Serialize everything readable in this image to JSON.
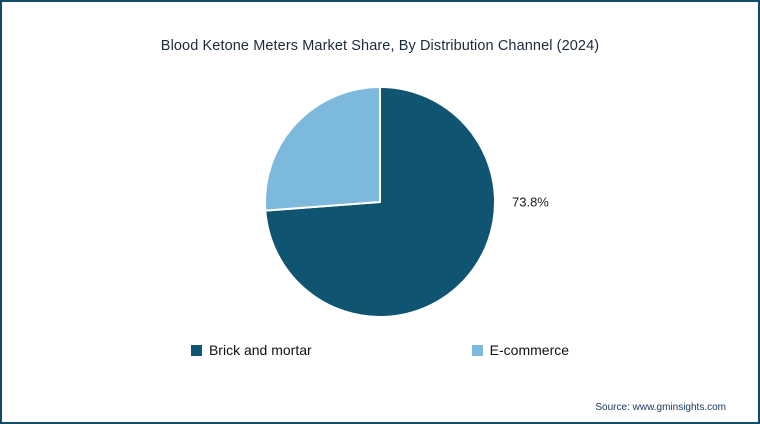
{
  "chart_data": {
    "type": "pie",
    "title": "Blood Ketone Meters Market Share, By Distribution Channel (2024)",
    "slices": [
      {
        "label": "Brick and mortar",
        "value": 73.8,
        "color": "#0f5571"
      },
      {
        "label": "E-commerce",
        "value": 26.2,
        "color": "#7db9dd"
      }
    ],
    "data_labels": [
      "73.8%"
    ],
    "start_angle_deg": -90,
    "direction": "clockwise",
    "legend_position": "bottom",
    "slice_separator_color": "#ffffff"
  },
  "source": "Source: www.gminsights.com",
  "frame": {
    "border_color": "#134b68",
    "background": "#ffffff"
  }
}
